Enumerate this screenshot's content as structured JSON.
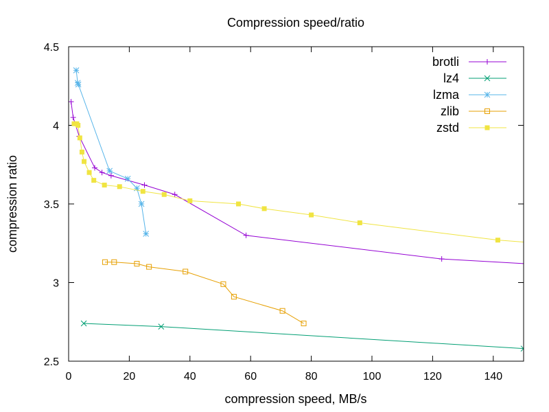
{
  "chart_data": {
    "type": "line",
    "title": "Compression speed/ratio",
    "xlabel": "compression speed, MB/s",
    "ylabel": "compression ratio",
    "xlim": [
      0,
      150
    ],
    "ylim": [
      2.5,
      4.5
    ],
    "xticks": [
      0,
      20,
      40,
      60,
      80,
      100,
      120,
      140
    ],
    "yticks": [
      2.5,
      3,
      3.5,
      4,
      4.5
    ],
    "grid": false,
    "legend": "top-right",
    "series": [
      {
        "name": "brotli",
        "color": "#9400d3",
        "marker": "plus",
        "x": [
          0.8,
          1.5,
          3.5,
          8.6,
          11,
          14,
          25,
          35,
          58.5,
          123,
          160
        ],
        "y": [
          4.15,
          4.05,
          3.93,
          3.73,
          3.7,
          3.68,
          3.62,
          3.56,
          3.3,
          3.15,
          3.11
        ]
      },
      {
        "name": "lz4",
        "color": "#009e73",
        "marker": "cross",
        "x": [
          5,
          30.5,
          150
        ],
        "y": [
          2.74,
          2.72,
          2.58
        ]
      },
      {
        "name": "lzma",
        "color": "#56b4e9",
        "marker": "asterisk",
        "x": [
          2.5,
          3,
          3.2,
          13.5,
          19.5,
          22.5,
          24,
          25.5
        ],
        "y": [
          4.35,
          4.27,
          4.26,
          3.71,
          3.66,
          3.6,
          3.5,
          3.31
        ]
      },
      {
        "name": "zlib",
        "color": "#e69f00",
        "marker": "open-square",
        "x": [
          12,
          15,
          22.5,
          26.5,
          38.5,
          51,
          54.5,
          70.5,
          77.5
        ],
        "y": [
          3.13,
          3.13,
          3.12,
          3.1,
          3.07,
          2.99,
          2.91,
          2.82,
          2.74
        ]
      },
      {
        "name": "zstd",
        "color": "#f0e442",
        "marker": "filled-square",
        "x": [
          1.8,
          2.7,
          3.1,
          3.7,
          4.4,
          5.1,
          6.8,
          8.3,
          11.8,
          16.8,
          24.5,
          31.5,
          40,
          56,
          64.5,
          80,
          96,
          141.5,
          155
        ],
        "y": [
          4.01,
          4.01,
          4.0,
          3.92,
          3.83,
          3.77,
          3.7,
          3.65,
          3.62,
          3.61,
          3.58,
          3.56,
          3.52,
          3.5,
          3.47,
          3.43,
          3.38,
          3.27,
          3.25
        ]
      }
    ]
  }
}
